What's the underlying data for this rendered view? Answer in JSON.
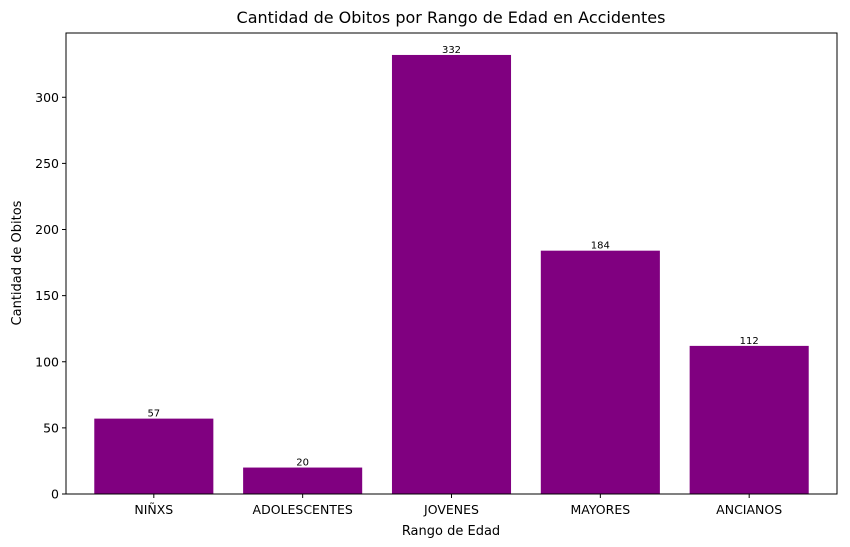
{
  "chart_data": {
    "type": "bar",
    "title": "Cantidad de Obitos por Rango de Edad en Accidentes",
    "xlabel": "Rango de Edad",
    "ylabel": "Cantidad de Obitos",
    "categories": [
      "NIÑXS",
      "ADOLESCENTES",
      "JOVENES",
      "MAYORES",
      "ANCIANOS"
    ],
    "values": [
      57,
      20,
      332,
      184,
      112
    ],
    "data_labels": [
      "57",
      "20",
      "332",
      "184",
      "112"
    ],
    "ylim": [
      0,
      348.6
    ],
    "yticks": [
      0,
      50,
      100,
      150,
      200,
      250,
      300
    ],
    "ytick_labels": [
      "0",
      "50",
      "100",
      "150",
      "200",
      "250",
      "300"
    ],
    "bar_color": "#800080",
    "grid": false,
    "legend": "none"
  }
}
